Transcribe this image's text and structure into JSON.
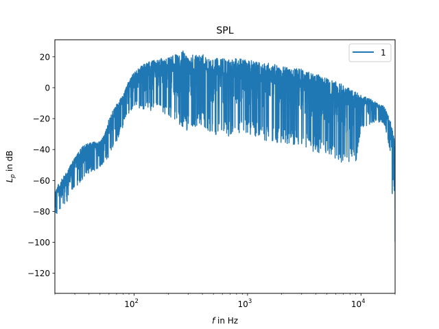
{
  "chart_data": {
    "type": "line",
    "title": "SPL",
    "xlabel_var": "f",
    "xlabel_rest": " in Hz",
    "ylabel_var": "L",
    "ylabel_sub": "p",
    "ylabel_rest": " in dB",
    "xscale": "log",
    "xlim": [
      20,
      20000
    ],
    "ylim": [
      -133,
      31
    ],
    "x_ticks": [
      {
        "value": 100,
        "base": "10",
        "exp": "2"
      },
      {
        "value": 1000,
        "base": "10",
        "exp": "3"
      },
      {
        "value": 10000,
        "base": "10",
        "exp": "4"
      }
    ],
    "y_ticks": [
      20,
      0,
      -20,
      -40,
      -60,
      -80,
      -100,
      -120
    ],
    "y_tick_labels": [
      "20",
      "0",
      "−20",
      "−40",
      "−60",
      "−80",
      "−100",
      "−120"
    ],
    "legend": {
      "placement": "top-right",
      "entries": [
        "1"
      ]
    },
    "grid": false,
    "series": [
      {
        "name": "1",
        "color": "#1f77b4",
        "upper": {
          "x": [
            20,
            25,
            30,
            35,
            40,
            50,
            55,
            60,
            70,
            80,
            90,
            100,
            120,
            150,
            200,
            250,
            270,
            300,
            350,
            400,
            450,
            500,
            600,
            700,
            800,
            900,
            1000,
            1500,
            2000,
            3000,
            4000,
            5000,
            6000,
            8000,
            10000,
            12000,
            14000,
            16000,
            18000,
            20000
          ],
          "y": [
            -66,
            -55,
            -45,
            -38,
            -35,
            -35,
            -30,
            -20,
            -10,
            -5,
            5,
            10,
            15,
            18,
            20,
            22,
            24,
            20,
            22,
            22,
            20,
            19,
            19,
            18,
            19,
            19,
            18,
            16,
            14,
            12,
            9,
            6,
            4,
            0,
            -5,
            -7,
            -10,
            -12,
            -20,
            -35
          ]
        },
        "lower": {
          "x": [
            20,
            25,
            30,
            35,
            40,
            50,
            60,
            70,
            80,
            90,
            100,
            120,
            150,
            200,
            250,
            300,
            400,
            500,
            700,
            1000,
            1500,
            2000,
            3000,
            4000,
            5000,
            6000,
            7000,
            8000,
            9000,
            10000,
            12000,
            14000,
            16000,
            18000,
            19000,
            20000
          ],
          "y": [
            -85,
            -75,
            -65,
            -60,
            -55,
            -52,
            -45,
            -35,
            -25,
            -18,
            -12,
            -14,
            -16,
            -18,
            -25,
            -28,
            -25,
            -30,
            -32,
            -30,
            -35,
            -36,
            -38,
            -42,
            -44,
            -46,
            -50,
            -48,
            -50,
            -26,
            -24,
            -22,
            -24,
            -40,
            -75,
            -100
          ]
        }
      }
    ]
  }
}
